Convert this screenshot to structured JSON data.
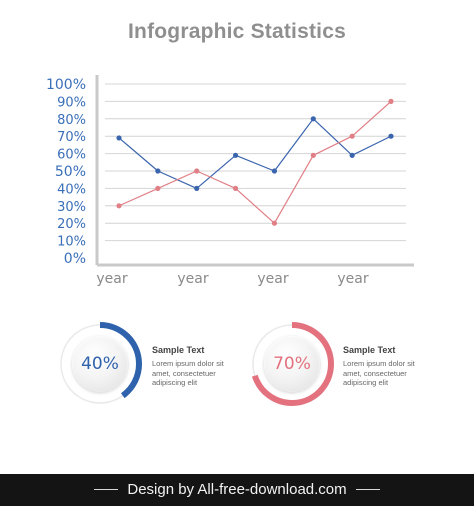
{
  "title": "Infographic Statistics",
  "chart_data": {
    "type": "line",
    "ylim": [
      0,
      100
    ],
    "yticks": [
      "0%",
      "10%",
      "20%",
      "30%",
      "40%",
      "50%",
      "60%",
      "70%",
      "80%",
      "90%",
      "100%"
    ],
    "xlabels": [
      "year",
      "year",
      "year",
      "year"
    ],
    "grid": true,
    "series": [
      {
        "color": "#3a64ad",
        "values": [
          69,
          50,
          40,
          59,
          50,
          80,
          59,
          70
        ]
      },
      {
        "color": "#e07f86",
        "values": [
          30,
          40,
          50,
          40,
          20,
          59,
          70,
          90
        ]
      }
    ]
  },
  "gauges": [
    {
      "percent": 40,
      "label": "40%",
      "color": "#2f62ad",
      "heading": "Sample Text",
      "body": [
        "Lorem ipsum dolor sit",
        "amet, consectetuer",
        "adipiscing elit"
      ]
    },
    {
      "percent": 70,
      "label": "70%",
      "color": "#e3727e",
      "heading": "Sample Text",
      "body": [
        "Lorem ipsum dolor sit",
        "amet, consectetuer",
        "adipiscing elit"
      ]
    }
  ],
  "footer": {
    "text": "Design by All-free-download.com"
  }
}
